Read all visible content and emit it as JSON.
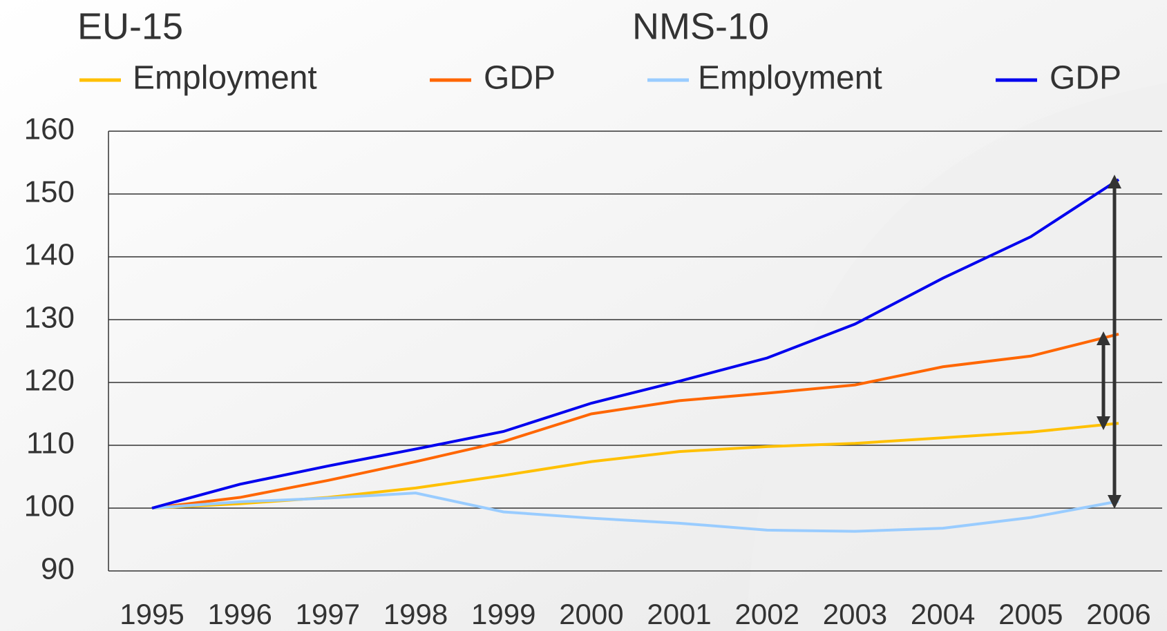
{
  "chart_data": {
    "type": "line",
    "legend_titles": [
      "EU-15",
      "NMS-10"
    ],
    "categories": [
      "1995",
      "1996",
      "1997",
      "1998",
      "1999",
      "2000",
      "2001",
      "2002",
      "2003",
      "2004",
      "2005",
      "2006"
    ],
    "series": [
      {
        "name": "Employment",
        "color": "#ffc000",
        "values": [
          100,
          100.7,
          101.7,
          103.2,
          105.2,
          107.4,
          109,
          109.8,
          110.3,
          111.2,
          112.1,
          113.5
        ]
      },
      {
        "name": "GDP",
        "color": "#ff6600",
        "values": [
          100,
          101.7,
          104.4,
          107.4,
          110.6,
          115,
          117.1,
          118.3,
          119.6,
          122.5,
          124.2,
          127.7
        ]
      },
      {
        "name": "Employment",
        "color": "#99ccff",
        "values": [
          100,
          101,
          101.6,
          102.4,
          99.4,
          98.4,
          97.6,
          96.5,
          96.3,
          96.8,
          98.5,
          101.1
        ]
      },
      {
        "name": "GDP",
        "color": "#0000ee",
        "values": [
          100,
          103.8,
          106.7,
          109.4,
          112.2,
          116.7,
          120.2,
          123.9,
          129.3,
          136.6,
          143.2,
          152.3
        ]
      }
    ],
    "ylim": [
      90,
      160
    ],
    "yticks": [
      90,
      100,
      110,
      120,
      130,
      140,
      150,
      160
    ],
    "grid": true
  }
}
